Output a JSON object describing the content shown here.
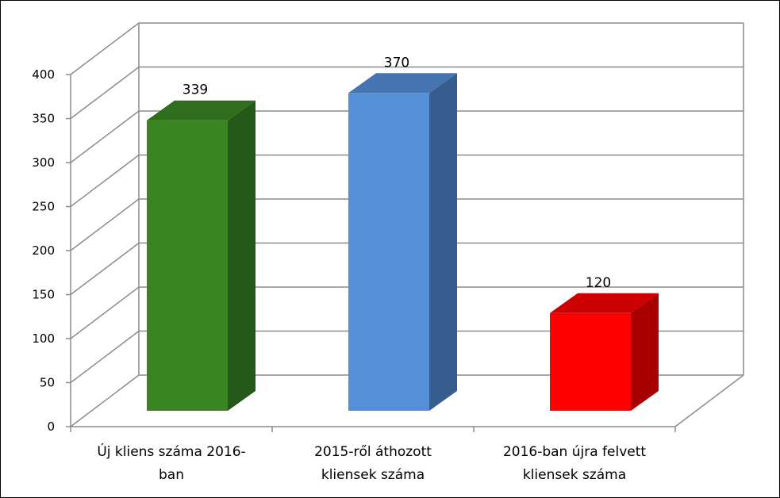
{
  "chart_data": {
    "type": "bar",
    "title": "",
    "xlabel": "",
    "ylabel": "",
    "ylim": [
      0,
      400
    ],
    "y_ticks": [
      0,
      50,
      100,
      150,
      200,
      250,
      300,
      350,
      400
    ],
    "grid": true,
    "three_d": true,
    "categories": [
      [
        "Új kliens száma 2016-",
        "ban"
      ],
      [
        "2015-ről áthozott",
        "kliensek száma"
      ],
      [
        "2016-ban újra felvett",
        "kliensek száma"
      ]
    ],
    "values": [
      339,
      370,
      120
    ],
    "data_labels": [
      "339",
      "370",
      "120"
    ],
    "colors": [
      {
        "front": "#3a8522",
        "side": "#24591a",
        "top": "#2e6e1d"
      },
      {
        "front": "#558fd5",
        "side": "#375d8f",
        "top": "#4674b0"
      },
      {
        "front": "#ff0000",
        "side": "#a80000",
        "top": "#cc0000"
      }
    ],
    "grid_color": "#8c8c8c"
  }
}
